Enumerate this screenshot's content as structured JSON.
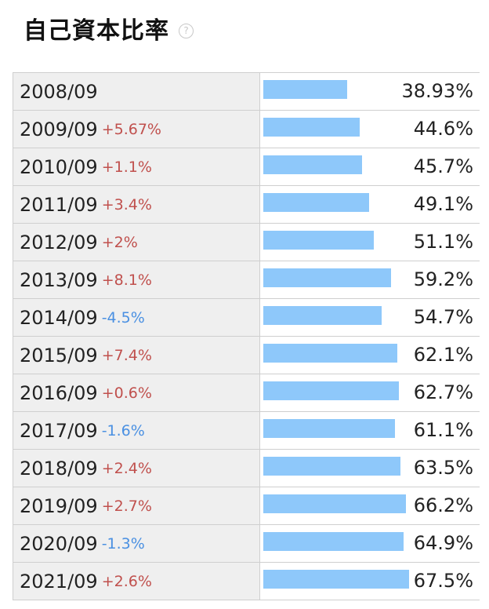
{
  "header": {
    "title": "自己資本比率",
    "help_icon": "question-circle-icon"
  },
  "colors": {
    "bar": "#8ec8fa",
    "positive_delta": "#c0504d",
    "negative_delta": "#4a90e2"
  },
  "rows": [
    {
      "year": "2008/09",
      "delta": "",
      "value": "38.93%",
      "ratio": 38.93
    },
    {
      "year": "2009/09",
      "delta": "+5.67%",
      "value": "44.6%",
      "ratio": 44.6
    },
    {
      "year": "2010/09",
      "delta": "+1.1%",
      "value": "45.7%",
      "ratio": 45.7
    },
    {
      "year": "2011/09",
      "delta": "+3.4%",
      "value": "49.1%",
      "ratio": 49.1
    },
    {
      "year": "2012/09",
      "delta": "+2%",
      "value": "51.1%",
      "ratio": 51.1
    },
    {
      "year": "2013/09",
      "delta": "+8.1%",
      "value": "59.2%",
      "ratio": 59.2
    },
    {
      "year": "2014/09",
      "delta": "-4.5%",
      "value": "54.7%",
      "ratio": 54.7
    },
    {
      "year": "2015/09",
      "delta": "+7.4%",
      "value": "62.1%",
      "ratio": 62.1
    },
    {
      "year": "2016/09",
      "delta": "+0.6%",
      "value": "62.7%",
      "ratio": 62.7
    },
    {
      "year": "2017/09",
      "delta": "-1.6%",
      "value": "61.1%",
      "ratio": 61.1
    },
    {
      "year": "2018/09",
      "delta": "+2.4%",
      "value": "63.5%",
      "ratio": 63.5
    },
    {
      "year": "2019/09",
      "delta": "+2.7%",
      "value": "66.2%",
      "ratio": 66.2
    },
    {
      "year": "2020/09",
      "delta": "-1.3%",
      "value": "64.9%",
      "ratio": 64.9
    },
    {
      "year": "2021/09",
      "delta": "+2.6%",
      "value": "67.5%",
      "ratio": 67.5
    }
  ]
}
